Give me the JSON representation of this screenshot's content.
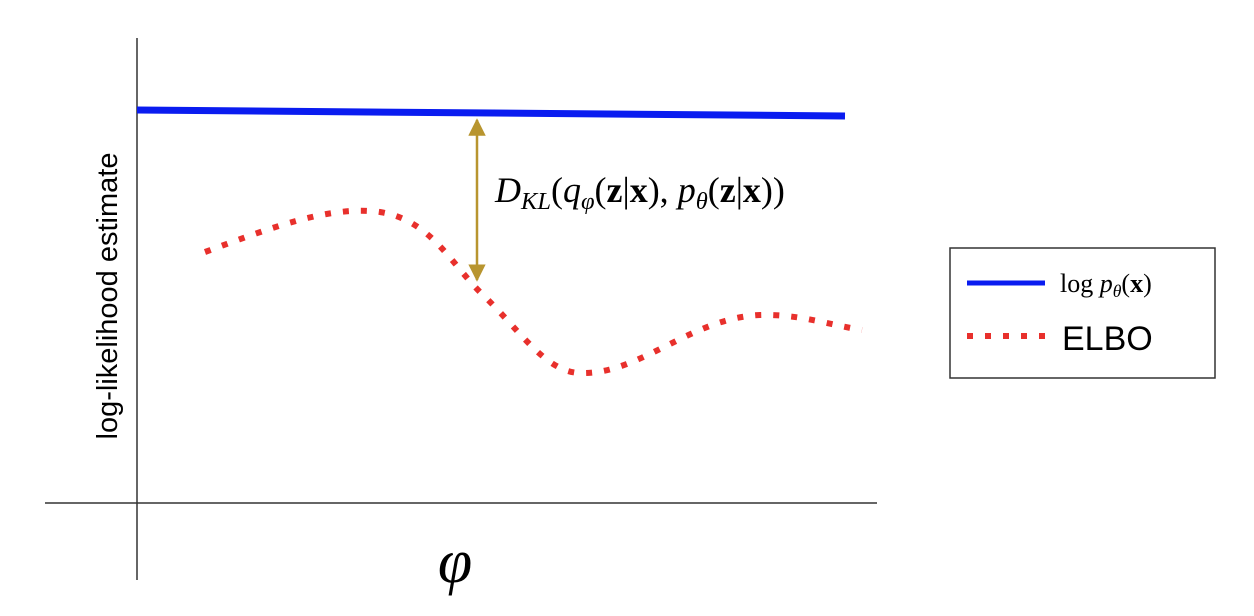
{
  "y_axis_label": "log-likelihood estimate",
  "x_axis_label": "φ",
  "annotation": [
    {
      "text": "D",
      "style": "italic"
    },
    {
      "text": "KL",
      "style": "sub"
    },
    {
      "text": "(",
      "style": "normal"
    },
    {
      "text": "q",
      "style": "italic"
    },
    {
      "text": "φ",
      "style": "sub"
    },
    {
      "text": "(",
      "style": "normal"
    },
    {
      "text": "z",
      "style": "bold"
    },
    {
      "text": "|",
      "style": "normal"
    },
    {
      "text": "x",
      "style": "bold"
    },
    {
      "text": "), ",
      "style": "normal"
    },
    {
      "text": "p",
      "style": "italic"
    },
    {
      "text": "θ",
      "style": "sub"
    },
    {
      "text": "(",
      "style": "normal"
    },
    {
      "text": "z",
      "style": "bold"
    },
    {
      "text": "|",
      "style": "normal"
    },
    {
      "text": "x",
      "style": "bold"
    },
    {
      "text": "))",
      "style": "normal"
    }
  ],
  "legend": [
    {
      "parts": [
        {
          "text": "log ",
          "style": "normal"
        },
        {
          "text": "p",
          "style": "italic"
        },
        {
          "text": "θ",
          "style": "sub"
        },
        {
          "text": "(",
          "style": "normal"
        },
        {
          "text": "x",
          "style": "bold"
        },
        {
          "text": ")",
          "style": "normal"
        }
      ]
    },
    {
      "parts": [
        {
          "text": "ELBO",
          "style": "sans"
        }
      ]
    }
  ]
}
